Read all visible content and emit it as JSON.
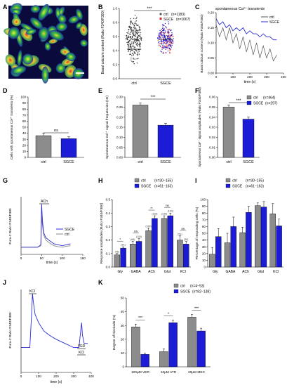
{
  "panels": {
    "A": {
      "letter": "A"
    },
    "B": {
      "letter": "B",
      "ylabel": "Basal calcium content (Ratio F340/F380)",
      "sig": "***",
      "legend": [
        {
          "name": "ctrl",
          "n": "(n=1183)"
        },
        {
          "name": "SGCE",
          "n": "(n=1067)"
        }
      ],
      "categories": [
        "ctrl",
        "SGCE"
      ],
      "yticks": [
        "0.0",
        "0.2",
        "0.4",
        "0.6",
        "0.8",
        "1.0"
      ]
    },
    "C": {
      "letter": "C",
      "title": "spontaneous Ca²⁺ transients",
      "xlabel": "time (s)",
      "ylabel": "Basal calcium content (Ratio F340/F380)",
      "legend": [
        "ctrl",
        "SGCE"
      ],
      "xticks": [
        "0",
        "100",
        "200",
        "300",
        "400"
      ],
      "yticks": [
        "0.00",
        "0.05",
        "0.10",
        "0.15",
        "0.20"
      ]
    },
    "D": {
      "letter": "D",
      "ylabel": "Cells with spontaneous Ca²⁺ transients (%)",
      "sig": "ns",
      "categories": [
        "ctrl",
        "SGCE"
      ],
      "yticks": [
        "0",
        "10",
        "20",
        "30",
        "40",
        "50",
        "60",
        "70",
        "80",
        "90",
        "100"
      ]
    },
    "E": {
      "letter": "E",
      "ylabel": "Spontaneous Ca²⁺ signal frequencies (Hz)",
      "sig": "***",
      "categories": [
        "ctrl",
        "SGCE"
      ],
      "yticks": [
        "0.00",
        "0.05",
        "0.10",
        "0.15",
        "0.20",
        "0.25",
        "0.30"
      ]
    },
    "F": {
      "letter": "F",
      "ylabel": "Spontaneous Ca²⁺ signal amplitudes (Ratio F340/F380)",
      "sig": "***",
      "categories": [
        "ctrl",
        "SGCE"
      ],
      "yticks": [
        "0.00",
        "0.01",
        "0.02",
        "0.03",
        "0.04",
        "0.05",
        "0.06"
      ],
      "legend": [
        {
          "name": "ctrl",
          "n": "(n=464)"
        },
        {
          "name": "SGCE",
          "n": "(n=297)"
        }
      ]
    },
    "G": {
      "letter": "G",
      "ylabel": "Fura-2 Ratio F340/F380",
      "xlabel": "time (s)",
      "annotation": "ACh",
      "legend": [
        "SGCE",
        "ctrl"
      ],
      "xticks": [
        "0",
        "50",
        "100",
        "150"
      ]
    },
    "H": {
      "letter": "H",
      "ylabel": "Response amplitudes (Ratio F340/F380)",
      "categories": [
        "Gly",
        "GABA",
        "ACh",
        "Glut",
        "KCl"
      ],
      "legend": [
        {
          "name": "ctrl",
          "n": "(n=30−155)"
        },
        {
          "name": "SGCE",
          "n": "(n=61−163)"
        }
      ],
      "nlabels": [
        "(46)",
        "(61)",
        "(68)",
        "(100)",
        "(104)",
        "(118)",
        "(136)",
        "(163)",
        "(51)",
        "(36)"
      ],
      "sigs": [
        "*",
        "ns",
        "**",
        "ns",
        "ns"
      ],
      "yticks": [
        "0.0",
        "0.1",
        "0.2",
        "0.3",
        "0.4",
        "0.5"
      ]
    },
    "I": {
      "letter": "I",
      "ylabel": "Percentage of responding cells (%)",
      "categories": [
        "Gly",
        "GABA",
        "ACh",
        "Glut",
        "KCl"
      ],
      "legend": [
        {
          "name": "ctrl",
          "n": "(n=30−155)"
        },
        {
          "name": "SGCE",
          "n": "(n=61−163)"
        }
      ],
      "yticks": [
        "0",
        "10",
        "20",
        "30",
        "40",
        "50",
        "60",
        "70",
        "80",
        "90",
        "100"
      ]
    },
    "J": {
      "letter": "J",
      "ylabel": "Fura-2 Ratio F340/F380",
      "xlabel": "time (s)",
      "annotations": [
        "KCl",
        "VER",
        "KCl"
      ],
      "xticks": [
        "0",
        "100",
        "200",
        "300",
        "400"
      ]
    },
    "K": {
      "letter": "K",
      "ylabel": "Degree of blockade (%)",
      "categories": [
        "100µM VER",
        "10µM ATR",
        "20µM MEC"
      ],
      "legend": [
        {
          "name": "ctrl",
          "n": "(n=4−53)"
        },
        {
          "name": "SGCE",
          "n": "(n=62−138)"
        }
      ],
      "sigs": [
        "***",
        "*",
        "***"
      ],
      "yticks": [
        "0",
        "10",
        "20",
        "30",
        "40",
        "50"
      ]
    }
  },
  "colors": {
    "ctrl": "#8c8c8c",
    "sgce": "#1c1cd6",
    "trace_ctrl": "#555555",
    "trace_sgce": "#2b2bd8"
  },
  "chart_data": [
    {
      "panel": "B",
      "type": "scatter",
      "categories": [
        "ctrl",
        "SGCE"
      ],
      "ylim": [
        0,
        1.0
      ],
      "series": [
        {
          "name": "ctrl",
          "mean": 0.42,
          "range": [
            0.18,
            0.95
          ]
        },
        {
          "name": "SGCE",
          "mean": 0.56,
          "range": [
            0.27,
            0.85
          ]
        }
      ]
    },
    {
      "panel": "C",
      "type": "line",
      "xlim": [
        0,
        400
      ],
      "ylim": [
        0.0,
        0.2
      ],
      "series": [
        {
          "name": "ctrl",
          "x": [
            0,
            20,
            40,
            60,
            80,
            100,
            120,
            140,
            160,
            180,
            200,
            220,
            240,
            260,
            280,
            300,
            320,
            340,
            360
          ],
          "y": [
            0.16,
            0.12,
            0.15,
            0.11,
            0.15,
            0.1,
            0.13,
            0.08,
            0.12,
            0.07,
            0.11,
            0.06,
            0.1,
            0.05,
            0.09,
            0.05,
            0.08,
            0.04,
            0.06
          ]
        },
        {
          "name": "SGCE",
          "x": [
            0,
            20,
            40,
            60,
            80,
            100,
            120,
            140,
            160,
            180,
            200,
            220,
            240,
            260,
            280,
            300,
            320,
            340,
            360
          ],
          "y": [
            0.18,
            0.16,
            0.17,
            0.15,
            0.16,
            0.14,
            0.15,
            0.14,
            0.15,
            0.13,
            0.14,
            0.13,
            0.13,
            0.12,
            0.13,
            0.12,
            0.12,
            0.11,
            0.11
          ]
        }
      ]
    },
    {
      "panel": "D",
      "type": "bar",
      "categories": [
        "ctrl",
        "SGCE"
      ],
      "values": [
        36,
        31
      ],
      "errors": [
        4,
        3
      ],
      "ylim": [
        0,
        100
      ]
    },
    {
      "panel": "E",
      "type": "bar",
      "categories": [
        "ctrl",
        "SGCE"
      ],
      "values": [
        0.26,
        0.16
      ],
      "errors": [
        0.01,
        0.01
      ],
      "ylim": [
        0,
        0.3
      ]
    },
    {
      "panel": "F",
      "type": "bar",
      "categories": [
        "ctrl",
        "SGCE"
      ],
      "values": [
        0.05,
        0.038
      ],
      "errors": [
        0.002,
        0.002
      ],
      "ylim": [
        0,
        0.06
      ]
    },
    {
      "panel": "G",
      "type": "line",
      "xlim": [
        0,
        150
      ],
      "ylim": [
        0.4,
        1.6
      ],
      "series": [
        {
          "name": "SGCE",
          "x": [
            0,
            40,
            48,
            50,
            52,
            55,
            60,
            70,
            80,
            90,
            100,
            110,
            120
          ],
          "y": [
            0.55,
            0.55,
            0.6,
            1.45,
            1.1,
            0.85,
            0.75,
            0.68,
            0.62,
            0.6,
            0.58,
            0.6,
            0.62
          ]
        },
        {
          "name": "ctrl",
          "x": [
            0,
            40,
            48,
            50,
            52,
            55,
            60,
            70,
            80,
            90,
            100,
            110,
            120
          ],
          "y": [
            0.55,
            0.55,
            0.58,
            1.2,
            1.0,
            0.8,
            0.7,
            0.63,
            0.58,
            0.56,
            0.55,
            0.57,
            0.58
          ]
        }
      ]
    },
    {
      "panel": "H",
      "type": "bar",
      "categories": [
        "Gly",
        "GABA",
        "ACh",
        "Glut",
        "KCl"
      ],
      "ylim": [
        0,
        0.5
      ],
      "series": [
        {
          "name": "ctrl",
          "values": [
            0.09,
            0.17,
            0.27,
            0.36,
            0.2
          ],
          "errors": [
            0.01,
            0.02,
            0.02,
            0.02,
            0.03
          ]
        },
        {
          "name": "SGCE",
          "values": [
            0.14,
            0.19,
            0.36,
            0.38,
            0.17
          ],
          "errors": [
            0.01,
            0.02,
            0.02,
            0.02,
            0.02
          ]
        }
      ]
    },
    {
      "panel": "I",
      "type": "bar",
      "categories": [
        "Gly",
        "GABA",
        "ACh",
        "Glut",
        "KCl"
      ],
      "ylim": [
        0,
        100
      ],
      "series": [
        {
          "name": "ctrl",
          "values": [
            19,
            36,
            51,
            91,
            79
          ],
          "errors": [
            10,
            14,
            8,
            4,
            15
          ]
        },
        {
          "name": "SGCE",
          "values": [
            45,
            60,
            81,
            89,
            61
          ],
          "errors": [
            12,
            14,
            9,
            8,
            10
          ]
        }
      ]
    },
    {
      "panel": "J",
      "type": "line",
      "xlim": [
        0,
        400
      ],
      "ylim": [
        0.6,
        1.6
      ],
      "series": [
        {
          "name": "trace",
          "x": [
            0,
            50,
            60,
            65,
            70,
            80,
            100,
            130,
            160,
            200,
            250,
            300,
            330,
            340,
            345,
            350,
            360,
            380
          ],
          "y": [
            0.9,
            0.9,
            1.3,
            1.55,
            1.45,
            1.3,
            1.2,
            1.1,
            1.05,
            1.0,
            0.95,
            0.9,
            0.9,
            1.1,
            1.2,
            1.05,
            0.95,
            0.95
          ]
        }
      ]
    },
    {
      "panel": "K",
      "type": "bar",
      "categories": [
        "100µM VER",
        "10µM ATR",
        "20µM MEC"
      ],
      "ylim": [
        0,
        50
      ],
      "series": [
        {
          "name": "ctrl",
          "values": [
            29,
            11,
            36
          ],
          "errors": [
            2,
            2,
            2
          ]
        },
        {
          "name": "SGCE",
          "values": [
            9,
            32,
            26
          ],
          "errors": [
            1,
            2,
            2
          ]
        }
      ]
    }
  ]
}
